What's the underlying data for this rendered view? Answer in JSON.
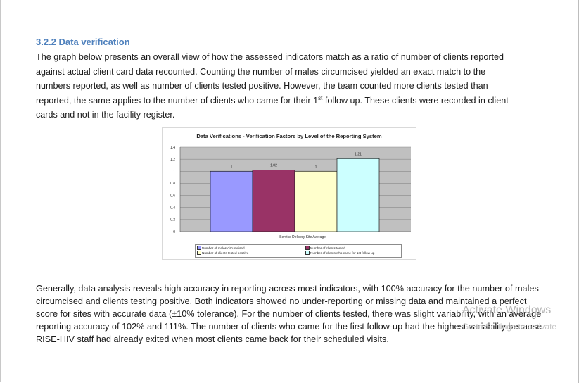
{
  "document": {
    "heading": "3.2.2 Data verification",
    "paragraph1_a": "The graph below presents an overall view of how the assessed indicators match as a ratio of number of clients reported against actual client card data recounted. Counting the number of males circumcised yielded an exact match to the numbers reported, as well as number of clients tested positive. However, the team counted more clients tested than reported, the same applies to the number of clients who came for their 1",
    "paragraph1_sup": "st",
    "paragraph1_b": " follow up. These clients were recorded in client cards and not in the facility register.",
    "paragraph2": "Generally, data analysis reveals high accuracy in reporting across most indicators, with 100% accuracy for the number of males circumcised and clients testing positive. Both indicators showed no under-reporting or missing data and maintained a perfect score for sites with accurate data (±10% tolerance). For the number of clients tested, there was slight variability, with an average reporting accuracy of 102% and 111%. The number of clients who came for the first follow-up had the highest variability because RISE-HIV staff had already exited when most clients came back for their scheduled visits."
  },
  "watermark": {
    "title": "Activate Windows",
    "subtitle": "Go to Settings to activate"
  },
  "chart_data": {
    "type": "bar",
    "title": "Data Verifications - Verification Factors by Level of the Reporting System",
    "categories": [
      "Service Delivery Site Average"
    ],
    "xlabel": "Service Delivery Site Average",
    "ylabel": "",
    "ylim": [
      0,
      1.4
    ],
    "yticks": [
      "0",
      "0.2",
      "0.4",
      "0.6",
      "0.8",
      "1",
      "1.2",
      "1.4"
    ],
    "grid": true,
    "legend_position": "bottom",
    "series": [
      {
        "name": "Number of males circumcised",
        "values": [
          1
        ],
        "label": "1",
        "color": "#9999ff"
      },
      {
        "name": "Number of clients tested",
        "values": [
          1.02
        ],
        "label": "1.02",
        "color": "#993366"
      },
      {
        "name": "Number of clients tested positive",
        "values": [
          1
        ],
        "label": "1",
        "color": "#ffffcc"
      },
      {
        "name": "Number of clients who came for 1st follow up",
        "values": [
          1.21
        ],
        "label": "1.21",
        "color": "#ccffff"
      }
    ]
  }
}
